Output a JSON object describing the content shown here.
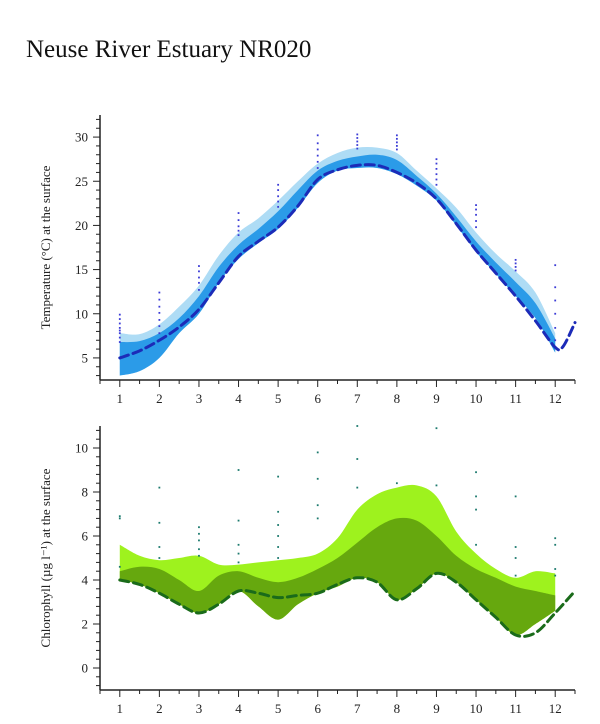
{
  "page": {
    "title": "Neuse River Estuary NR020"
  },
  "chart_data": [
    {
      "type": "area",
      "ylabel": "Temperature (°C) at the surface",
      "xlabel": "",
      "x_ticks": [
        1,
        2,
        3,
        4,
        5,
        6,
        7,
        8,
        9,
        10,
        11,
        12
      ],
      "y_ticks": [
        5,
        10,
        15,
        20,
        25,
        30
      ],
      "xlim": [
        0.5,
        12.5
      ],
      "ylim": [
        2.5,
        32.5
      ],
      "colors": {
        "outer_band": "#aedcf5",
        "inner_band": "#2b9be8",
        "median_line": "#1c2bb8",
        "observations": "#3b3bd6"
      },
      "outer_band": {
        "x": [
          1,
          1.5,
          2,
          2.5,
          3,
          3.5,
          4,
          4.5,
          5,
          5.5,
          6,
          6.5,
          7,
          7.5,
          8,
          8.5,
          9,
          9.5,
          10,
          10.5,
          11,
          11.5,
          12
        ],
        "upper": [
          7.8,
          7.7,
          8.8,
          10.8,
          13.2,
          16.6,
          19.2,
          20.8,
          22.8,
          25.0,
          27.0,
          28.2,
          28.8,
          28.8,
          28.2,
          26.2,
          24.2,
          22.0,
          19.2,
          16.8,
          14.8,
          12.4,
          7.8
        ],
        "lower": [
          3.0,
          3.5,
          5.0,
          7.8,
          10.0,
          13.5,
          16.2,
          18.0,
          19.6,
          22.0,
          24.8,
          26.2,
          26.5,
          26.5,
          25.8,
          24.5,
          22.8,
          20.0,
          17.0,
          14.5,
          12.0,
          9.5,
          5.6
        ]
      },
      "inner_band": {
        "x": [
          1,
          1.5,
          2,
          2.5,
          3,
          3.5,
          4,
          4.5,
          5,
          5.5,
          6,
          6.5,
          7,
          7.5,
          8,
          8.5,
          9,
          9.5,
          10,
          10.5,
          11,
          11.5,
          12
        ],
        "upper": [
          6.8,
          6.9,
          7.8,
          9.5,
          12.0,
          15.3,
          17.8,
          19.6,
          21.6,
          24.0,
          26.2,
          27.3,
          27.8,
          28.0,
          27.4,
          25.6,
          23.6,
          21.0,
          18.2,
          15.8,
          13.6,
          11.2,
          7.2
        ],
        "lower": [
          3.0,
          3.5,
          5.0,
          7.8,
          10.0,
          13.5,
          16.2,
          18.0,
          19.6,
          22.0,
          24.8,
          26.2,
          26.5,
          26.5,
          25.8,
          24.5,
          22.8,
          20.0,
          17.0,
          14.5,
          12.0,
          9.5,
          5.6
        ]
      },
      "median_line": {
        "x": [
          1,
          1.5,
          2,
          2.5,
          3,
          3.5,
          4,
          4.5,
          5,
          5.5,
          6,
          6.5,
          7,
          7.5,
          8,
          8.5,
          9,
          9.5,
          10,
          10.5,
          11,
          11.5,
          12,
          12.2,
          12.5
        ],
        "y": [
          5.0,
          5.8,
          7.0,
          8.5,
          10.5,
          13.5,
          16.5,
          18.2,
          19.8,
          22.2,
          25.2,
          26.3,
          26.8,
          26.8,
          26.0,
          24.8,
          23.0,
          20.2,
          17.2,
          14.6,
          12.0,
          9.2,
          6.2,
          6.3,
          9.0
        ]
      },
      "observations": [
        [
          1,
          6.8
        ],
        [
          1,
          7.3
        ],
        [
          1,
          7.8
        ],
        [
          1,
          8.1
        ],
        [
          1,
          8.4
        ],
        [
          1,
          8.9
        ],
        [
          1,
          9.4
        ],
        [
          1,
          9.9
        ],
        [
          2,
          7.8
        ],
        [
          2,
          8.6
        ],
        [
          2,
          9.3
        ],
        [
          2,
          10.1
        ],
        [
          2,
          10.8
        ],
        [
          2,
          11.6
        ],
        [
          2,
          12.4
        ],
        [
          3,
          12.7
        ],
        [
          3,
          13.5
        ],
        [
          3,
          14.1
        ],
        [
          3,
          14.8
        ],
        [
          3,
          15.4
        ],
        [
          4,
          18.9
        ],
        [
          4,
          19.4
        ],
        [
          4,
          19.9
        ],
        [
          4,
          20.6
        ],
        [
          4,
          21.4
        ],
        [
          5,
          22.1
        ],
        [
          5,
          22.7
        ],
        [
          5,
          23.3
        ],
        [
          5,
          24.0
        ],
        [
          5,
          24.6
        ],
        [
          6,
          26.5
        ],
        [
          6,
          27.2
        ],
        [
          6,
          27.9
        ],
        [
          6,
          28.6
        ],
        [
          6,
          29.3
        ],
        [
          6,
          30.2
        ],
        [
          7,
          28.7
        ],
        [
          7,
          29.1
        ],
        [
          7,
          29.5
        ],
        [
          7,
          29.9
        ],
        [
          7,
          30.3
        ],
        [
          8,
          28.6
        ],
        [
          8,
          29.0
        ],
        [
          8,
          29.4
        ],
        [
          8,
          29.8
        ],
        [
          8,
          30.2
        ],
        [
          9,
          24.6
        ],
        [
          9,
          25.2
        ],
        [
          9,
          25.8
        ],
        [
          9,
          26.4
        ],
        [
          9,
          27.0
        ],
        [
          9,
          27.5
        ],
        [
          10,
          19.8
        ],
        [
          10,
          20.5
        ],
        [
          10,
          21.2
        ],
        [
          10,
          21.8
        ],
        [
          10,
          22.3
        ],
        [
          11,
          14.9
        ],
        [
          11,
          15.3
        ],
        [
          11,
          15.7
        ],
        [
          11,
          16.1
        ],
        [
          12,
          7.0
        ],
        [
          12,
          8.4
        ],
        [
          12,
          10.0
        ],
        [
          12,
          11.5
        ],
        [
          12,
          13.0
        ],
        [
          12,
          15.5
        ]
      ]
    },
    {
      "type": "area",
      "ylabel": "Chlorophyll (µg l⁻¹) at the surface",
      "xlabel": "",
      "x_ticks": [
        1,
        2,
        3,
        4,
        5,
        6,
        7,
        8,
        9,
        10,
        11,
        12
      ],
      "y_ticks": [
        0,
        2,
        4,
        6,
        8,
        10
      ],
      "xlim": [
        0.5,
        12.5
      ],
      "ylim": [
        -1,
        11
      ],
      "colors": {
        "outer_band": "#9ef21e",
        "inner_band": "#66a80e",
        "median_line": "#1a6b1a",
        "observations": "#1c7a6e"
      },
      "outer_band": {
        "x": [
          1,
          1.5,
          2,
          2.5,
          3,
          3.5,
          4,
          4.5,
          5,
          5.5,
          6,
          6.5,
          7,
          7.5,
          8,
          8.5,
          9,
          9.5,
          10,
          10.5,
          11,
          11.5,
          12
        ],
        "upper": [
          5.6,
          5.1,
          4.9,
          5.0,
          5.1,
          4.7,
          4.7,
          4.8,
          4.9,
          5.0,
          5.2,
          5.9,
          7.2,
          7.9,
          8.2,
          8.3,
          7.8,
          6.2,
          5.2,
          4.5,
          4.1,
          4.4,
          4.3
        ],
        "lower": [
          4.0,
          3.8,
          3.4,
          2.9,
          2.5,
          2.9,
          3.5,
          2.8,
          2.2,
          2.9,
          3.4,
          3.7,
          4.1,
          3.9,
          3.1,
          3.6,
          4.3,
          3.9,
          3.1,
          2.3,
          1.5,
          2.0,
          2.6
        ]
      },
      "inner_band": {
        "x": [
          1,
          1.5,
          2,
          2.5,
          3,
          3.5,
          4,
          4.5,
          5,
          5.5,
          6,
          6.5,
          7,
          7.5,
          8,
          8.5,
          9,
          9.5,
          10,
          10.5,
          11,
          11.5,
          12
        ],
        "upper": [
          4.4,
          4.6,
          4.5,
          4.0,
          3.5,
          4.2,
          4.4,
          4.1,
          3.9,
          4.1,
          4.5,
          5.0,
          5.7,
          6.4,
          6.8,
          6.7,
          6.0,
          5.1,
          4.5,
          4.1,
          3.7,
          3.5,
          3.3
        ],
        "lower": [
          4.0,
          3.8,
          3.4,
          2.9,
          2.5,
          2.9,
          3.5,
          2.8,
          2.2,
          2.9,
          3.4,
          3.7,
          4.1,
          3.9,
          3.1,
          3.6,
          4.3,
          3.9,
          3.1,
          2.3,
          1.5,
          2.0,
          2.6
        ]
      },
      "median_line": {
        "x": [
          1,
          1.5,
          2,
          2.5,
          3,
          3.5,
          4,
          4.5,
          5,
          5.5,
          6,
          6.5,
          7,
          7.5,
          8,
          8.5,
          9,
          9.5,
          10,
          10.5,
          11,
          11.5,
          12,
          12.5
        ],
        "y": [
          4.0,
          3.8,
          3.4,
          2.9,
          2.5,
          2.9,
          3.5,
          3.4,
          3.2,
          3.3,
          3.4,
          3.8,
          4.1,
          3.9,
          3.1,
          3.6,
          4.3,
          3.9,
          3.1,
          2.3,
          1.5,
          1.6,
          2.5,
          3.5
        ]
      },
      "observations": [
        [
          1,
          6.8
        ],
        [
          1,
          6.9
        ],
        [
          1,
          4.6
        ],
        [
          2,
          8.2
        ],
        [
          2,
          6.6
        ],
        [
          2,
          5.5
        ],
        [
          2,
          5.0
        ],
        [
          3,
          6.4
        ],
        [
          3,
          6.1
        ],
        [
          3,
          5.8
        ],
        [
          3,
          5.4
        ],
        [
          3,
          5.1
        ],
        [
          4,
          9.0
        ],
        [
          4,
          6.7
        ],
        [
          4,
          5.6
        ],
        [
          4,
          5.2
        ],
        [
          4,
          4.8
        ],
        [
          5,
          8.7
        ],
        [
          5,
          7.1
        ],
        [
          5,
          6.5
        ],
        [
          5,
          6.0
        ],
        [
          5,
          5.5
        ],
        [
          5,
          5.0
        ],
        [
          6,
          9.8
        ],
        [
          6,
          8.6
        ],
        [
          6,
          7.4
        ],
        [
          6,
          6.8
        ],
        [
          7,
          11.0
        ],
        [
          7,
          9.5
        ],
        [
          7,
          8.2
        ],
        [
          8,
          8.4
        ],
        [
          9,
          10.9
        ],
        [
          9,
          8.3
        ],
        [
          10,
          8.9
        ],
        [
          10,
          7.8
        ],
        [
          10,
          7.2
        ],
        [
          10,
          5.6
        ],
        [
          11,
          7.8
        ],
        [
          11,
          5.5
        ],
        [
          11,
          5.0
        ],
        [
          11,
          4.2
        ],
        [
          12,
          5.9
        ],
        [
          12,
          5.6
        ],
        [
          12,
          4.5
        ],
        [
          12,
          4.2
        ]
      ]
    }
  ]
}
